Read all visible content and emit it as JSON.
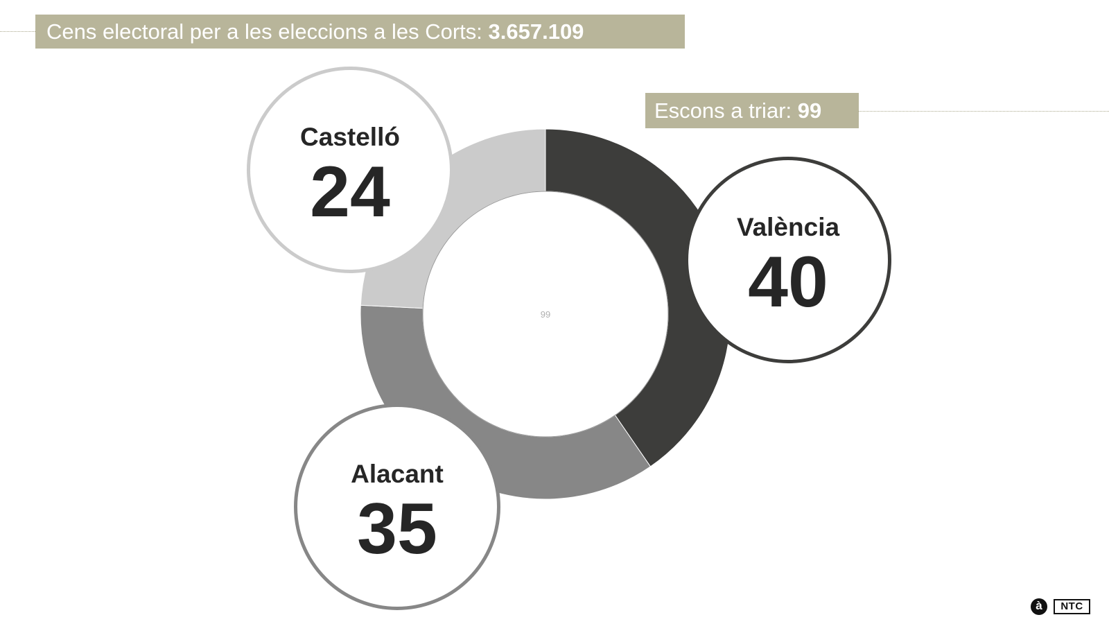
{
  "header": {
    "title_text": "Cens electoral per a les eleccions a les Corts: ",
    "title_value": "3.657.109",
    "seats_text": "Escons a triar: ",
    "seats_value": "99"
  },
  "chart_data": {
    "type": "pie",
    "variant": "donut",
    "center_label": "99",
    "total": 99,
    "categories": [
      "València",
      "Alacant",
      "Castelló"
    ],
    "values": [
      40,
      35,
      24
    ],
    "colors": [
      "#3d3d3b",
      "#878787",
      "#cbcbcb"
    ],
    "labels": [
      {
        "name": "València",
        "value": "40"
      },
      {
        "name": "Alacant",
        "value": "35"
      },
      {
        "name": "Castelló",
        "value": "24"
      }
    ]
  },
  "logo": {
    "mark": "à",
    "text": "NTC"
  }
}
